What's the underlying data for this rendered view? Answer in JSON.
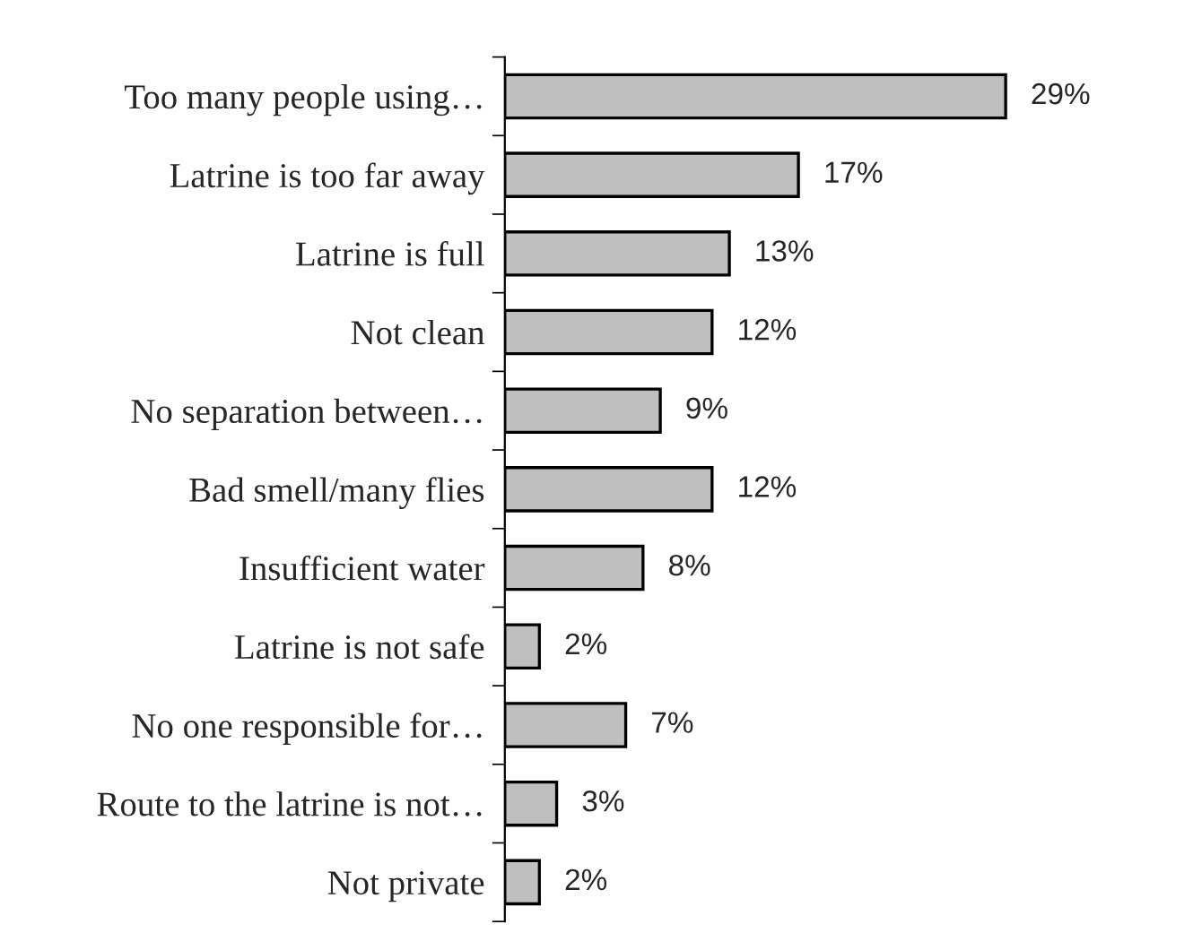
{
  "chart_data": {
    "type": "bar",
    "orientation": "horizontal",
    "categories": [
      "Too many people using…",
      "Latrine is too far away",
      "Latrine is full",
      "Not clean",
      "No separation between…",
      "Bad smell/many flies",
      "Insufficient water",
      "Latrine is not safe",
      "No one responsible for…",
      "Route to the latrine is not…",
      "Not private"
    ],
    "values": [
      29,
      17,
      13,
      12,
      9,
      12,
      8,
      2,
      7,
      3,
      2
    ],
    "value_labels": [
      "29%",
      "17%",
      "13%",
      "12%",
      "9%",
      "12%",
      "8%",
      "2%",
      "7%",
      "3%",
      "2%"
    ],
    "color": "#bfbfbf",
    "grid": false,
    "legend": false
  }
}
